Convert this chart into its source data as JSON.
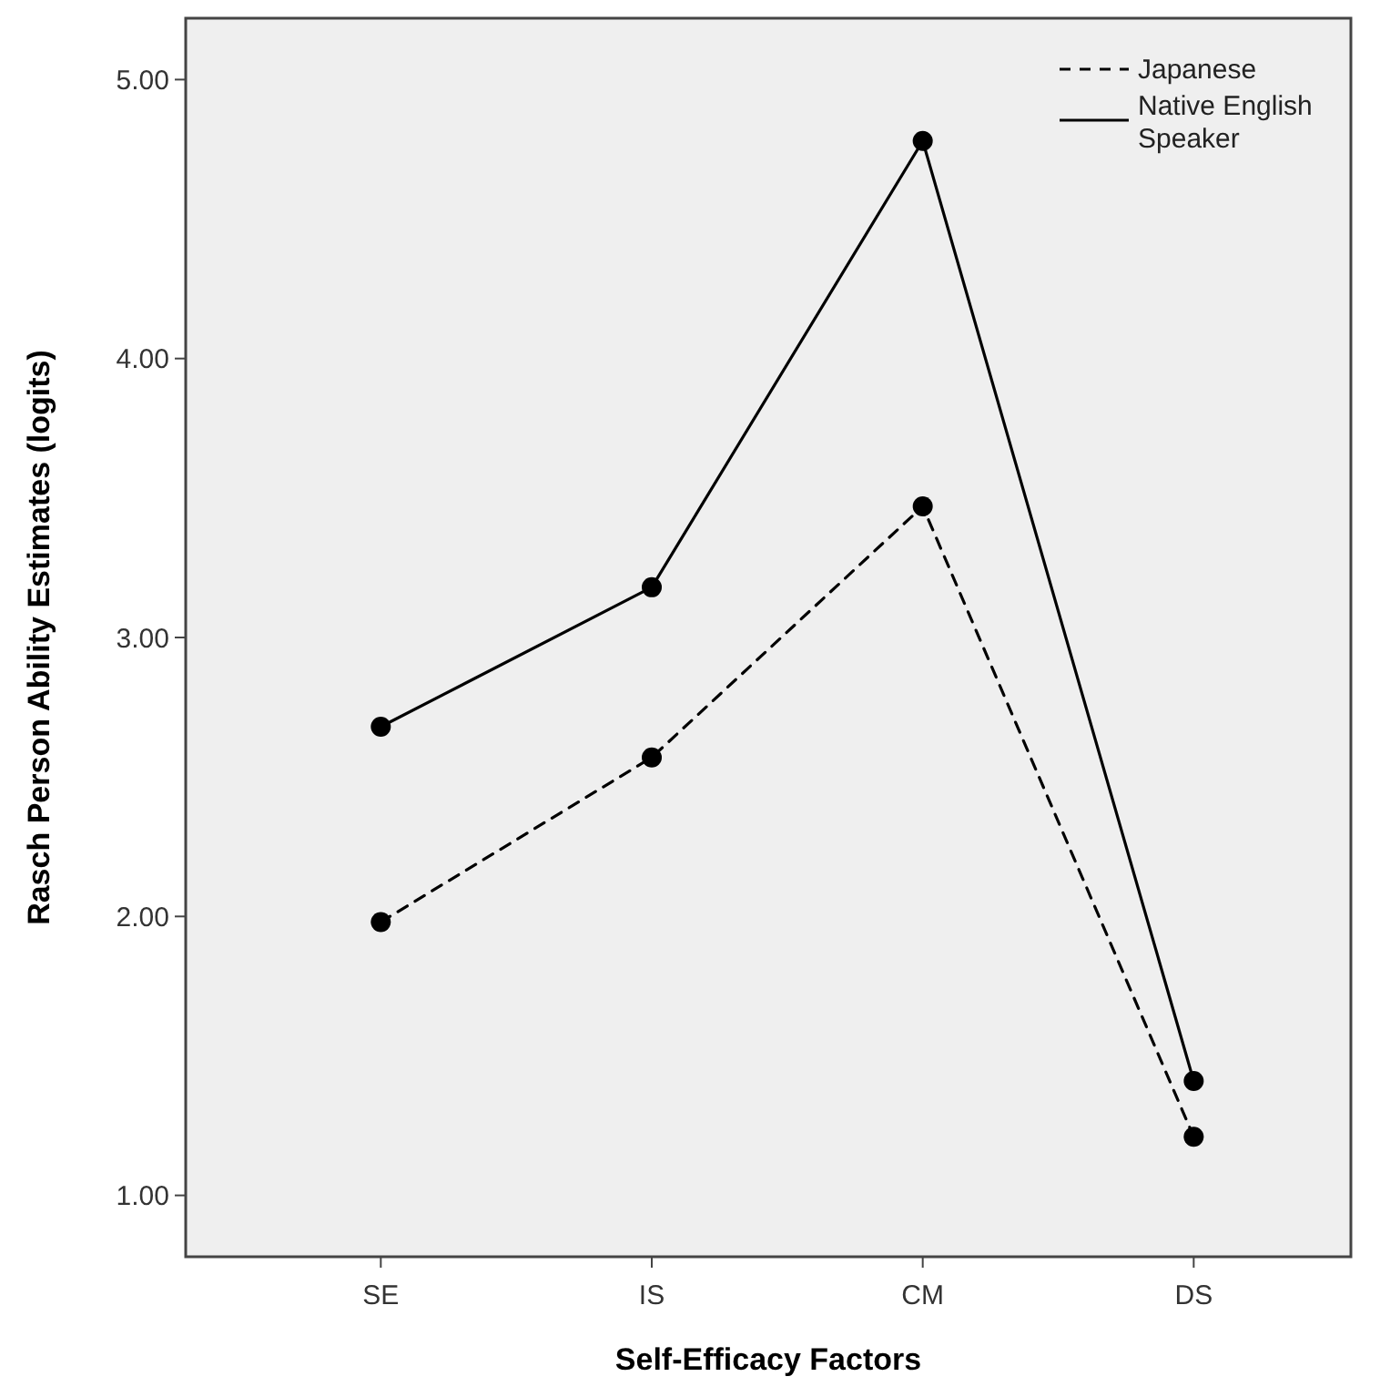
{
  "chart_data": {
    "type": "line",
    "xlabel": "Self-Efficacy Factors",
    "ylabel": "Rasch Person Ability Estimates (logits)",
    "categories": [
      "SE",
      "IS",
      "CM",
      "DS"
    ],
    "series": [
      {
        "name": "Japanese",
        "color": "#000000",
        "line_style": "dashed",
        "values": [
          1.98,
          2.57,
          3.47,
          1.21
        ]
      },
      {
        "name": "Native English Speaker",
        "color": "#000000",
        "line_style": "solid",
        "values": [
          2.68,
          3.18,
          4.78,
          1.41
        ]
      }
    ],
    "ylim": [
      0.78,
      5.22
    ],
    "yticks": [
      {
        "value": 1,
        "label": "1.00"
      },
      {
        "value": 2,
        "label": "2.00"
      },
      {
        "value": 3,
        "label": "3.00"
      },
      {
        "value": 4,
        "label": "4.00"
      },
      {
        "value": 5,
        "label": "5.00"
      }
    ],
    "grid": false,
    "legend": "top right",
    "marker": "circle"
  }
}
